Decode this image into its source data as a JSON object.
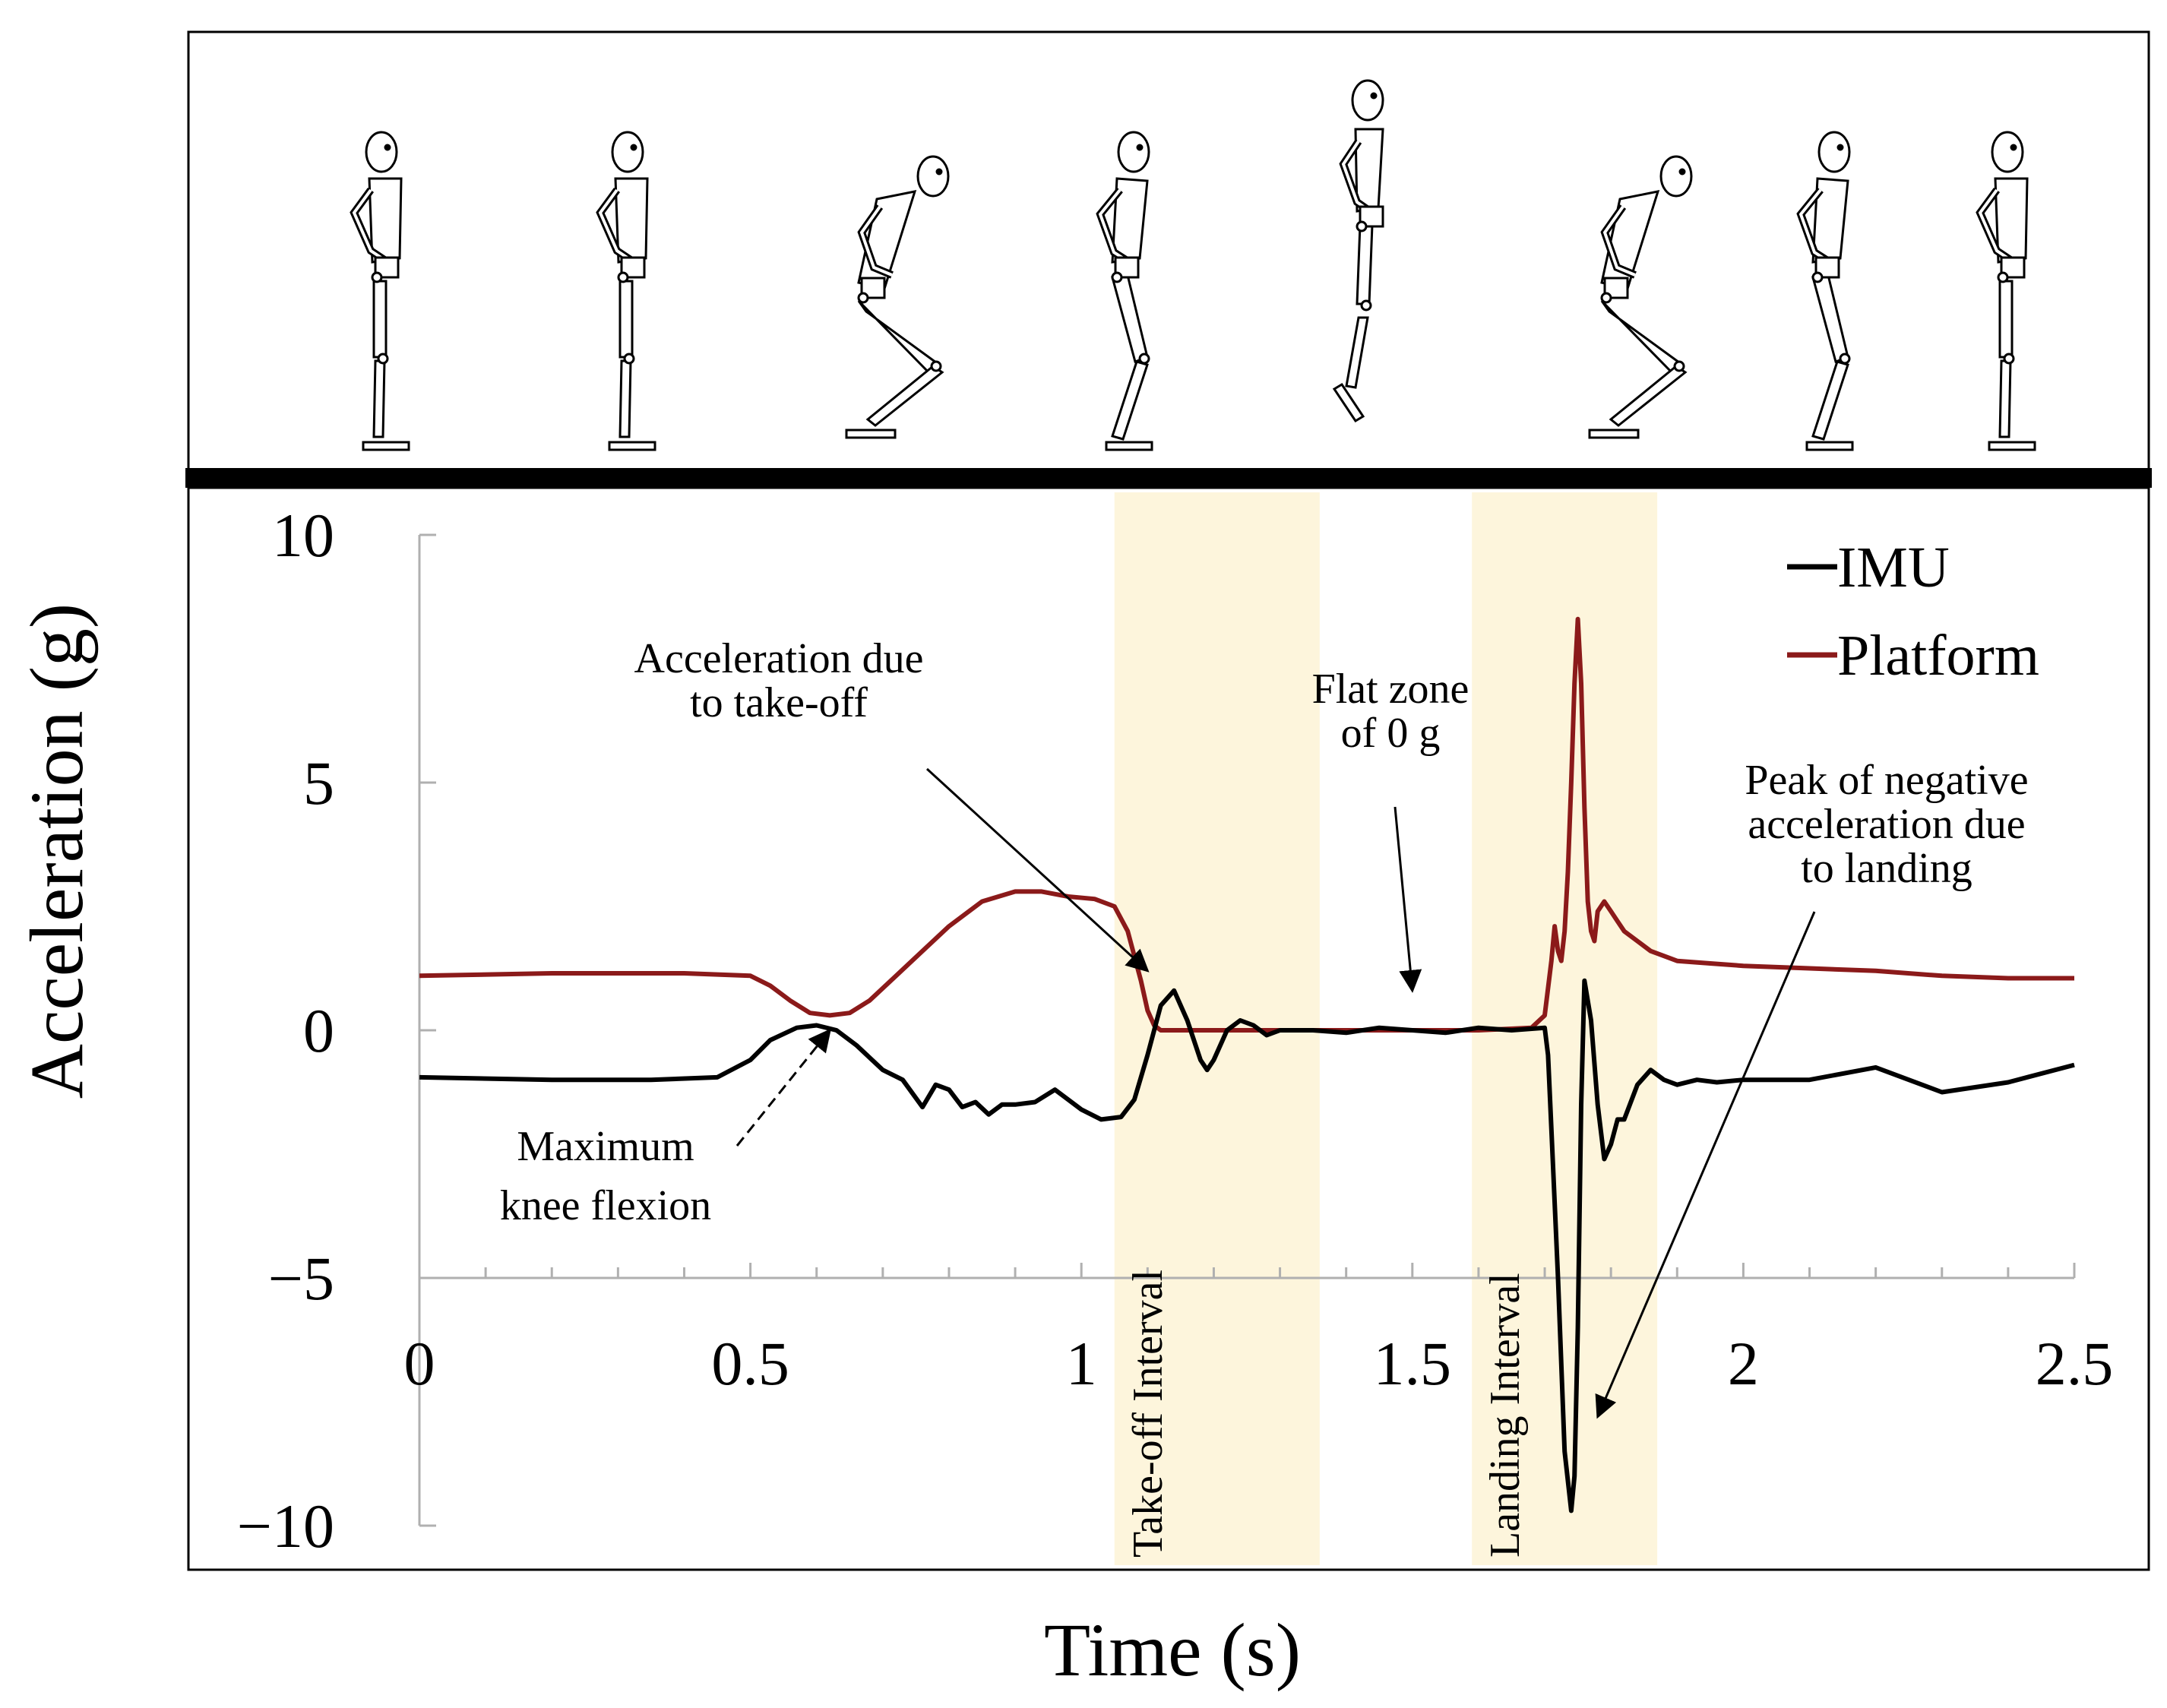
{
  "chart_data": {
    "type": "line",
    "title": "",
    "xlabel": "Time (s)",
    "ylabel": "Acceleration (g)",
    "xlim": [
      0,
      2.5
    ],
    "ylim": [
      -10,
      10
    ],
    "x_ticks": [
      0,
      0.5,
      1,
      1.5,
      2,
      2.5
    ],
    "x_tick_labels": [
      "0",
      "0.5",
      "1",
      "1.5",
      "2",
      "2.5"
    ],
    "y_ticks": [
      10,
      5,
      0,
      -5,
      -10
    ],
    "y_tick_labels": [
      "10",
      "5",
      "0",
      "−5",
      "−10"
    ],
    "legend_position": "top-right",
    "series": [
      {
        "name": "IMU",
        "color": "#000000",
        "x": [
          0,
          0.2,
          0.35,
          0.45,
          0.5,
          0.53,
          0.57,
          0.6,
          0.63,
          0.66,
          0.7,
          0.73,
          0.76,
          0.78,
          0.8,
          0.82,
          0.84,
          0.86,
          0.88,
          0.9,
          0.93,
          0.96,
          1.0,
          1.03,
          1.06,
          1.08,
          1.1,
          1.12,
          1.14,
          1.16,
          1.18,
          1.19,
          1.2,
          1.22,
          1.24,
          1.26,
          1.28,
          1.3,
          1.35,
          1.4,
          1.45,
          1.5,
          1.55,
          1.6,
          1.65,
          1.7,
          1.705,
          1.71,
          1.72,
          1.73,
          1.74,
          1.745,
          1.75,
          1.755,
          1.76,
          1.77,
          1.78,
          1.79,
          1.8,
          1.81,
          1.82,
          1.84,
          1.86,
          1.88,
          1.9,
          1.93,
          1.96,
          2.0,
          2.1,
          2.2,
          2.3,
          2.4,
          2.5
        ],
        "values": [
          -0.95,
          -1.0,
          -1.0,
          -0.95,
          -0.6,
          -0.2,
          0.05,
          0.1,
          0.0,
          -0.3,
          -0.8,
          -1.0,
          -1.55,
          -1.1,
          -1.2,
          -1.55,
          -1.45,
          -1.7,
          -1.5,
          -1.5,
          -1.45,
          -1.2,
          -1.6,
          -1.8,
          -1.75,
          -1.4,
          -0.5,
          0.5,
          0.8,
          0.2,
          -0.6,
          -0.8,
          -0.6,
          0.0,
          0.2,
          0.1,
          -0.1,
          0.0,
          0.0,
          -0.05,
          0.05,
          0.0,
          -0.05,
          0.05,
          0.0,
          0.05,
          -0.5,
          -2.0,
          -5.0,
          -8.5,
          -9.7,
          -9.0,
          -6.0,
          -1.5,
          1.0,
          0.2,
          -1.5,
          -2.6,
          -2.3,
          -1.8,
          -1.8,
          -1.1,
          -0.8,
          -1.0,
          -1.1,
          -1.0,
          -1.05,
          -1.0,
          -1.0,
          -0.75,
          -1.25,
          -1.05,
          -0.7
        ]
      },
      {
        "name": "Platform",
        "color": "#8b1a1a",
        "x": [
          0,
          0.2,
          0.4,
          0.5,
          0.53,
          0.56,
          0.59,
          0.62,
          0.65,
          0.68,
          0.72,
          0.76,
          0.8,
          0.85,
          0.9,
          0.94,
          0.98,
          1.02,
          1.05,
          1.07,
          1.09,
          1.1,
          1.11,
          1.12,
          1.15,
          1.2,
          1.3,
          1.4,
          1.5,
          1.6,
          1.68,
          1.7,
          1.71,
          1.715,
          1.72,
          1.725,
          1.73,
          1.735,
          1.74,
          1.745,
          1.75,
          1.755,
          1.76,
          1.765,
          1.77,
          1.775,
          1.78,
          1.79,
          1.8,
          1.81,
          1.82,
          1.84,
          1.86,
          1.88,
          1.9,
          1.95,
          2.0,
          2.1,
          2.2,
          2.3,
          2.4,
          2.5
        ],
        "values": [
          1.1,
          1.15,
          1.15,
          1.1,
          0.9,
          0.6,
          0.35,
          0.3,
          0.35,
          0.6,
          1.1,
          1.6,
          2.1,
          2.6,
          2.8,
          2.8,
          2.7,
          2.65,
          2.5,
          2.0,
          1.0,
          0.4,
          0.1,
          0.0,
          0.0,
          0.0,
          0.0,
          0.0,
          0.0,
          0.0,
          0.05,
          0.3,
          1.4,
          2.1,
          1.6,
          1.4,
          2.0,
          3.2,
          5.0,
          7.0,
          8.3,
          7.0,
          4.5,
          2.6,
          2.0,
          1.8,
          2.4,
          2.6,
          2.4,
          2.2,
          2.0,
          1.8,
          1.6,
          1.5,
          1.4,
          1.35,
          1.3,
          1.25,
          1.2,
          1.1,
          1.05,
          1.05
        ]
      }
    ],
    "shaded_intervals": [
      {
        "label": "Take-off Interval",
        "x_start": 1.05,
        "x_end": 1.36
      },
      {
        "label": "Landing Interval",
        "x_start": 1.59,
        "x_end": 1.87
      }
    ],
    "annotations": [
      {
        "lines": [
          "Acceleration due",
          "to take-off"
        ],
        "target": [
          1.1,
          1.2
        ]
      },
      {
        "lines": [
          "Flat zone",
          "of 0 g"
        ],
        "target": [
          1.5,
          0.8
        ]
      },
      {
        "lines": [
          "Peak of negative",
          "acceleration due",
          "to landing"
        ],
        "target": [
          1.78,
          -7.8
        ]
      },
      {
        "lines": [
          "Maximum",
          "knee flexion"
        ],
        "target": [
          0.62,
          0.0
        ]
      }
    ],
    "poses": 8
  }
}
